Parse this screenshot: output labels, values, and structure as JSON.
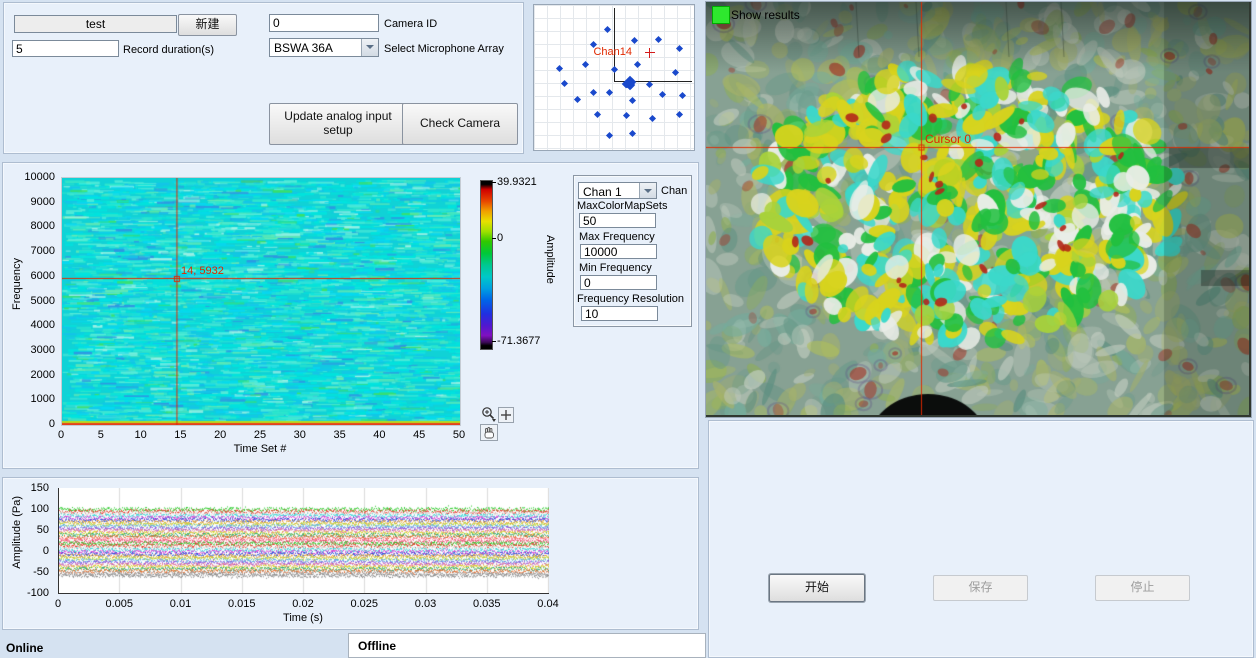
{
  "setup": {
    "session_name": "test",
    "new_button": "新建",
    "record_duration": "5",
    "record_duration_label": "Record duration(s)",
    "camera_id": "0",
    "camera_id_label": "Camera ID",
    "mic_array": "BSWA 36A",
    "mic_array_label": "Select Microphone Array",
    "update_analog_button": "Update analog input setup",
    "check_camera_button": "Check Camera"
  },
  "mic_plot": {
    "channel_label": "Chan14"
  },
  "spectrogram": {
    "ylabel": "Frequency",
    "xlabel": "Time Set #",
    "yticks": [
      "0",
      "1000",
      "2000",
      "3000",
      "4000",
      "5000",
      "6000",
      "7000",
      "8000",
      "9000",
      "10000"
    ],
    "xticks": [
      "0",
      "5",
      "10",
      "15",
      "20",
      "25",
      "30",
      "35",
      "40",
      "45",
      "50"
    ],
    "cursor_label": "14, 5932",
    "colorbar": {
      "label": "Amplitude",
      "max": "39.9321",
      "zero": "0",
      "min": "-71.3677"
    }
  },
  "analysis": {
    "chan_value": "Chan 1",
    "chan_label": "Chan",
    "fields": [
      {
        "label": "MaxColorMapSets",
        "value": "50"
      },
      {
        "label": "Max Frequency",
        "value": "10000"
      },
      {
        "label": "Min Frequency",
        "value": "0"
      },
      {
        "label": "Frequency Resolution",
        "value": "10"
      }
    ]
  },
  "camera": {
    "show_results": "Show results",
    "cursor_label": "Cursor 0"
  },
  "waveform": {
    "ylabel": "Amplitude (Pa)",
    "xlabel": "Time (s)",
    "yticks": [
      "150",
      "100",
      "50",
      "0",
      "-50",
      "-100"
    ],
    "xticks": [
      "0",
      "0.005",
      "0.01",
      "0.015",
      "0.02",
      "0.025",
      "0.03",
      "0.035",
      "0.04"
    ]
  },
  "controls": {
    "start": "开始",
    "save": "保存",
    "stop": "停止"
  },
  "status": {
    "online": "Online",
    "offline": "Offline"
  },
  "colors": {
    "cursor": "#e02800",
    "mic_point": "#1a49cc",
    "spectrogram_base": "#10d2d6",
    "show_results_on": "#2ee82e",
    "heat_bright": [
      "#d8d31d",
      "#22bf3f",
      "#3bd8ca",
      "#e9ede7",
      "#a8d23a",
      "#b3271a"
    ],
    "heat_muted": [
      "#a9b368",
      "#74ad9c",
      "#bcc7ba",
      "#9fae72",
      "#5c8f80",
      "#a23a2c"
    ]
  },
  "chart_data": [
    {
      "type": "scatter",
      "title": "microphone-array-layout",
      "highlight_label": "Chan14",
      "highlight_point_pct": [
        72.5,
        33.3
      ],
      "cluster_center_pct": [
        57.5,
        52.1
      ],
      "points_pct": [
        [
          44.4,
          15.1
        ],
        [
          61.3,
          22.6
        ],
        [
          76.3,
          21.9
        ],
        [
          35.6,
          25.3
        ],
        [
          89.4,
          28.1
        ],
        [
          63.1,
          39.0
        ],
        [
          30.6,
          39.0
        ],
        [
          14.4,
          41.8
        ],
        [
          48.8,
          42.5
        ],
        [
          86.9,
          44.5
        ],
        [
          17.5,
          52.7
        ],
        [
          70.6,
          53.4
        ],
        [
          35.6,
          58.9
        ],
        [
          45.6,
          58.9
        ],
        [
          78.8,
          60.3
        ],
        [
          25.6,
          63.7
        ],
        [
          91.3,
          61.0
        ],
        [
          60.0,
          64.4
        ],
        [
          38.1,
          74.0
        ],
        [
          56.3,
          74.7
        ],
        [
          72.5,
          76.7
        ],
        [
          89.4,
          74.0
        ],
        [
          60.0,
          87.0
        ],
        [
          45.6,
          88.4
        ]
      ]
    },
    {
      "type": "heatmap",
      "title": "spectrogram",
      "xlabel": "Time Set #",
      "ylabel": "Frequency",
      "xlim": [
        0,
        50
      ],
      "ylim": [
        0,
        10000
      ],
      "colorbar_label": "Amplitude",
      "colorbar_max": 39.9321,
      "colorbar_min": -71.3677,
      "cursor": {
        "x": 14,
        "y": 5932
      },
      "description": "uniform cyan broadband noise field; bright yellow/red row at 0 Hz"
    },
    {
      "type": "line",
      "title": "time-waveforms",
      "xlabel": "Time (s)",
      "ylabel": "Amplitude (Pa)",
      "xlim": [
        0,
        0.04
      ],
      "ylim": [
        -100,
        150
      ],
      "num_traces": 32,
      "trace_band_pa": [
        -62,
        100
      ],
      "description": "32 flat noisy channel traces stacked between -62 and 100 Pa"
    }
  ]
}
